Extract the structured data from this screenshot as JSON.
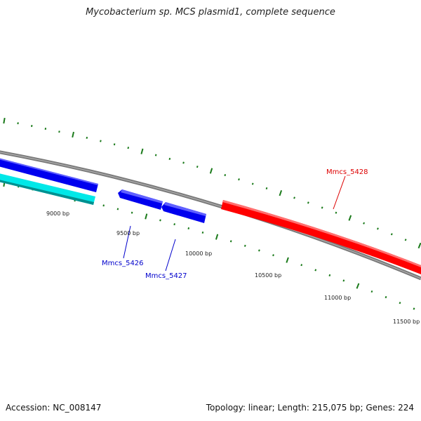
{
  "title": "Mycobacterium sp. MCS plasmid1, complete sequence",
  "footer": {
    "accession": "Accession: NC_008147",
    "topology": "Topology: linear; Length: 215,075 bp; Genes: 224"
  },
  "ticks": {
    "labels": [
      "9000 bp",
      "9500 bp",
      "10000 bp",
      "10500 bp",
      "11000 bp",
      "11500 bp"
    ]
  },
  "genes": [
    {
      "id": "Mmcs_5426",
      "label": "Mmcs_5426",
      "color": "#0000cc"
    },
    {
      "id": "Mmcs_5427",
      "label": "Mmcs_5427",
      "color": "#0000cc"
    },
    {
      "id": "Mmcs_5428",
      "label": "Mmcs_5428",
      "color": "#dd0000"
    }
  ],
  "colors": {
    "backbone": "#808080",
    "tick": "#1a7a1a",
    "forward_gene": "#ff0000",
    "reverse_gene": "#0000ee",
    "cyan_feature": "#00e5e5"
  }
}
